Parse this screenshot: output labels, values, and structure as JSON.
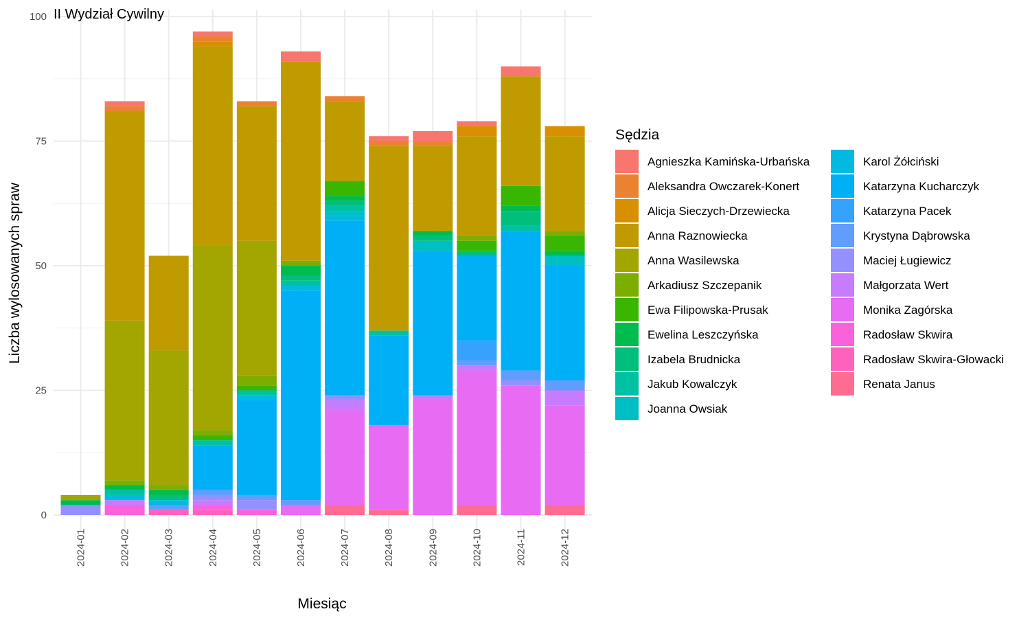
{
  "chart_data": {
    "type": "bar",
    "stacked": true,
    "title": "II Wydział Cywilny",
    "xlabel": "Miesiąc",
    "ylabel": "Liczba wylosowanych spraw",
    "ylim": [
      0,
      100
    ],
    "yticks": [
      0,
      25,
      50,
      75,
      100
    ],
    "grid": true,
    "legend_title": "Sędzia",
    "legend_position": "right",
    "categories": [
      "2024-01",
      "2024-02",
      "2024-03",
      "2024-04",
      "2024-05",
      "2024-06",
      "2024-07",
      "2024-08",
      "2024-09",
      "2024-10",
      "2024-11",
      "2024-12"
    ],
    "series": [
      {
        "name": "Agnieszka Kamińska-Urbańska",
        "color": "#F8766D",
        "values": [
          0,
          1,
          0,
          1,
          0,
          2,
          0,
          1,
          2,
          1,
          2,
          0
        ]
      },
      {
        "name": "Aleksandra Owczarek-Konert",
        "color": "#EA8331",
        "values": [
          0,
          1,
          0,
          1,
          1,
          0,
          1,
          1,
          1,
          0,
          0,
          0
        ]
      },
      {
        "name": "Alicja Sieczych-Drzewiecka",
        "color": "#D89000",
        "values": [
          0,
          0,
          0,
          1,
          0,
          0,
          0,
          0,
          0,
          2,
          0,
          2
        ]
      },
      {
        "name": "Anna Raznowiecka",
        "color": "#C09B00",
        "values": [
          0,
          42,
          19,
          40,
          27,
          40,
          16,
          37,
          17,
          20,
          22,
          19
        ]
      },
      {
        "name": "Anna Wasilewska",
        "color": "#A3A500",
        "values": [
          1,
          32,
          27,
          37,
          27,
          0,
          0,
          0,
          0,
          0,
          0,
          0
        ]
      },
      {
        "name": "Arkadiusz Szczepanik",
        "color": "#7CAE00",
        "values": [
          0,
          1,
          1,
          1,
          2,
          1,
          0,
          0,
          0,
          1,
          0,
          1
        ]
      },
      {
        "name": "Ewa Filipowska-Prusak",
        "color": "#39B600",
        "values": [
          0,
          0,
          0,
          1,
          1,
          0,
          3,
          0,
          0,
          2,
          4,
          3
        ]
      },
      {
        "name": "Ewelina Leszczyńska",
        "color": "#00BB4E",
        "values": [
          1,
          1,
          1,
          0,
          0,
          2,
          1,
          0,
          1,
          0,
          1,
          1
        ]
      },
      {
        "name": "Izabela Brudnicka",
        "color": "#00BF7D",
        "values": [
          0,
          0,
          1,
          0,
          0,
          1,
          1,
          0,
          1,
          1,
          3,
          0
        ]
      },
      {
        "name": "Jakub Kowalczyk",
        "color": "#00C1A3",
        "values": [
          0,
          1,
          0,
          1,
          1,
          1,
          1,
          1,
          0,
          0,
          1,
          0
        ]
      },
      {
        "name": "Joanna Owsiak",
        "color": "#00BFC4",
        "values": [
          0,
          0,
          0,
          0,
          0,
          0,
          1,
          0,
          2,
          0,
          0,
          2
        ]
      },
      {
        "name": "Karol Żółciński",
        "color": "#00BAE0",
        "values": [
          0,
          1,
          1,
          0,
          1,
          1,
          1,
          0,
          0,
          0,
          0,
          0
        ]
      },
      {
        "name": "Katarzyna Kucharczyk",
        "color": "#00B0F6",
        "values": [
          0,
          0,
          0,
          9,
          19,
          42,
          35,
          18,
          29,
          17,
          28,
          23
        ]
      },
      {
        "name": "Katarzyna Pacek",
        "color": "#35A2FF",
        "values": [
          0,
          0,
          0,
          0,
          0,
          0,
          0,
          0,
          0,
          4,
          0,
          0
        ]
      },
      {
        "name": "Krystyna Dąbrowska",
        "color": "#619CFF",
        "values": [
          0,
          0,
          1,
          1,
          1,
          1,
          0,
          0,
          0,
          1,
          2,
          2
        ]
      },
      {
        "name": "Maciej Ługiewicz",
        "color": "#9590FF",
        "values": [
          2,
          0,
          0,
          1,
          2,
          0,
          1,
          0,
          0,
          0,
          1,
          0
        ]
      },
      {
        "name": "Małgorzata Wert",
        "color": "#C77CFF",
        "values": [
          0,
          1,
          0,
          1,
          0,
          0,
          2,
          0,
          1,
          1,
          0,
          3
        ]
      },
      {
        "name": "Monika Zagórska",
        "color": "#E76BF3",
        "values": [
          0,
          0,
          0,
          0,
          0,
          2,
          19,
          17,
          23,
          27,
          26,
          20
        ]
      },
      {
        "name": "Radosław Skwira",
        "color": "#FA62DB",
        "values": [
          0,
          2,
          0,
          1,
          1,
          0,
          0,
          0,
          0,
          0,
          0,
          0
        ]
      },
      {
        "name": "Radosław Skwira-Głowacki",
        "color": "#FF62BC",
        "values": [
          0,
          0,
          1,
          1,
          0,
          0,
          0,
          0,
          0,
          0,
          0,
          0
        ]
      },
      {
        "name": "Renata Janus",
        "color": "#FF6C91",
        "values": [
          0,
          0,
          0,
          0,
          0,
          0,
          2,
          1,
          0,
          2,
          0,
          2
        ]
      }
    ]
  }
}
